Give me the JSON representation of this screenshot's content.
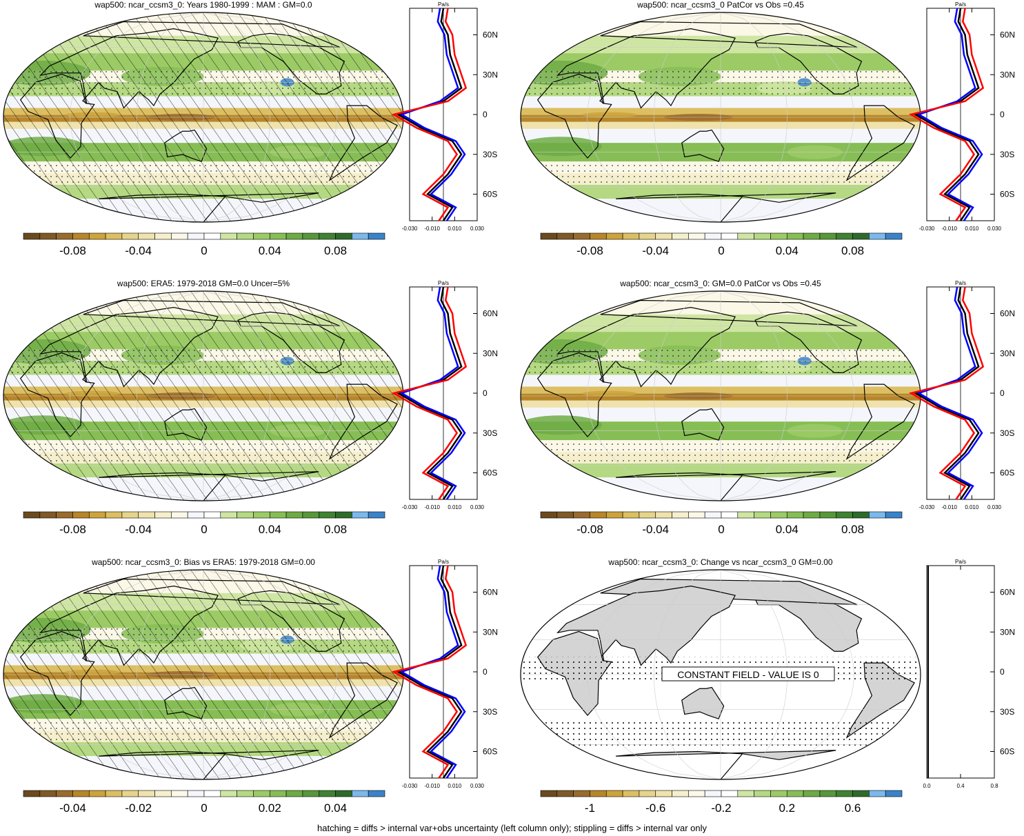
{
  "figure": {
    "footer": "hatching = diffs > internal var+obs uncertainty (left column only); stippling = diffs > internal var only",
    "profile_unit": "Pa/s",
    "lat_ticks": [
      "60N",
      "30N",
      "0",
      "30S",
      "60S"
    ],
    "profile_ticks": [
      "-0.030",
      "-0.010",
      "0.010",
      "0.030"
    ],
    "palette": [
      "#6b4a1e",
      "#7f5a28",
      "#9a6b2e",
      "#b7862a",
      "#cda33c",
      "#dcbf62",
      "#e6d48b",
      "#efe2ad",
      "#f5efcd",
      "#fbf8e8",
      "#f4f6fb",
      "#ffffff",
      "#cfe6a3",
      "#b4d982",
      "#9ccb66",
      "#86be55",
      "#6eab45",
      "#57983a",
      "#3f8233",
      "#2e6b2b",
      "#7ab9ec",
      "#3b83c8"
    ],
    "map_colors": {
      "land_outline": "#000000",
      "constant_land": "#d4d4d4"
    },
    "line_colors": {
      "model": "#000000",
      "obs": "#0000ff",
      "alt": "#ff0000"
    }
  },
  "panels": [
    {
      "title": "wap500: ncar_ccsm3_0: Years 1980-1999 : MAM : GM=0.0",
      "colorbar_labels": [
        "-0.08",
        "-0.04",
        "0",
        "0.04",
        "0.08"
      ],
      "hatched": true
    },
    {
      "title": "wap500: ncar_ccsm3_0 PatCor vs Obs =0.45",
      "colorbar_labels": [
        "-0.08",
        "-0.04",
        "0",
        "0.04",
        "0.08"
      ],
      "hatched": false
    },
    {
      "title": "wap500: ERA5: 1979-2018 GM=0.0 Uncer=5%",
      "colorbar_labels": [
        "-0.08",
        "-0.04",
        "0",
        "0.04",
        "0.08"
      ],
      "hatched": true
    },
    {
      "title": "wap500: ncar_ccsm3_0: GM=0.0 PatCor vs Obs =0.45",
      "colorbar_labels": [
        "-0.08",
        "-0.04",
        "0",
        "0.04",
        "0.08"
      ],
      "hatched": false
    },
    {
      "title": "wap500: ncar_ccsm3_0: Bias vs ERA5: 1979-2018 GM=0.00",
      "colorbar_labels": [
        "-0.04",
        "-0.02",
        "0",
        "0.02",
        "0.04"
      ],
      "hatched": true
    },
    {
      "title": "wap500: ncar_ccsm3_0: Change vs ncar_ccsm3_0 GM=0.00",
      "colorbar_labels": [
        "-1",
        "-0.6",
        "-0.2",
        "0.2",
        "0.6"
      ],
      "hatched": false,
      "constant": true,
      "constant_label": "CONSTANT FIELD - VALUE IS 0",
      "profile_ticks": [
        "0.0",
        "0.4",
        "0.8"
      ]
    }
  ]
}
